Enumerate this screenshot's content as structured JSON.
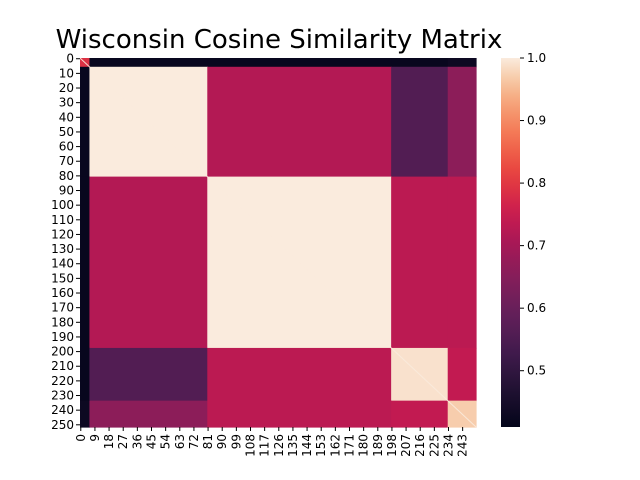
{
  "chart_data": {
    "type": "heatmap",
    "title": "Wisconsin Cosine Similarity Matrix",
    "xlabel": "",
    "ylabel": "",
    "n": 252,
    "x_tick_labels": [
      "0",
      "9",
      "18",
      "27",
      "36",
      "45",
      "54",
      "63",
      "72",
      "81",
      "90",
      "99",
      "108",
      "117",
      "126",
      "135",
      "144",
      "153",
      "162",
      "171",
      "180",
      "189",
      "198",
      "207",
      "216",
      "225",
      "234",
      "243"
    ],
    "y_tick_labels": [
      "0",
      "10",
      "20",
      "30",
      "40",
      "50",
      "60",
      "70",
      "80",
      "90",
      "100",
      "110",
      "120",
      "130",
      "140",
      "150",
      "160",
      "170",
      "180",
      "190",
      "200",
      "210",
      "220",
      "230",
      "240",
      "250"
    ],
    "block_boundaries": [
      0,
      6,
      81,
      198,
      234,
      252
    ],
    "block_similarity": [
      [
        0.79,
        0.42,
        0.42,
        0.42,
        0.43
      ],
      [
        0.42,
        1.0,
        0.72,
        0.56,
        0.66
      ],
      [
        0.42,
        0.72,
        1.0,
        0.73,
        0.73
      ],
      [
        0.42,
        0.56,
        0.73,
        0.99,
        0.74
      ],
      [
        0.43,
        0.66,
        0.73,
        0.74,
        0.97
      ]
    ],
    "colorbar": {
      "vmin": 0.41,
      "vmax": 1.0,
      "tick_labels": [
        "0.5",
        "0.6",
        "0.7",
        "0.8",
        "0.9",
        "1.0"
      ],
      "tick_values": [
        0.5,
        0.6,
        0.7,
        0.8,
        0.9,
        1.0
      ],
      "colormap": "rocket"
    },
    "grid": false
  }
}
